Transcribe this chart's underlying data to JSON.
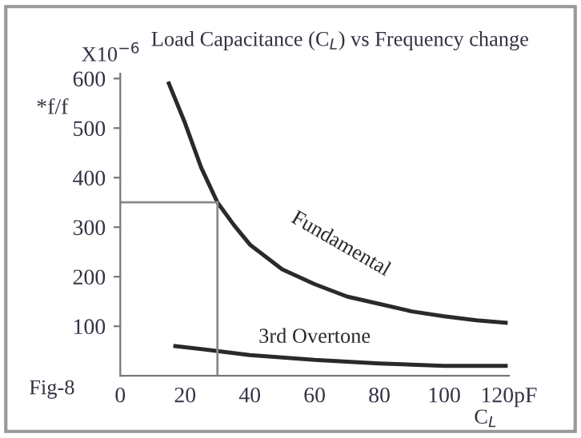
{
  "chart_data": {
    "type": "line",
    "title": "Load Capacitance (C$_{L}$) vs Frequency change",
    "xlabel": "C$_{L}$",
    "ylabel": "*f/f",
    "xlim": [
      0,
      120
    ],
    "xticks": [
      0,
      20,
      40,
      60,
      80,
      100,
      {
        "value": 120,
        "label": "120pF"
      }
    ],
    "ylim": [
      0,
      610
    ],
    "yticks": [
      100,
      200,
      300,
      400,
      500,
      600
    ],
    "series": [
      {
        "name": "Fundamental",
        "color": "#2a2a2a",
        "x": [
          15,
          20,
          25,
          30,
          35,
          40,
          50,
          60,
          70,
          80,
          90,
          100,
          110,
          119
        ],
        "values": [
          590,
          510,
          420,
          350,
          305,
          265,
          215,
          185,
          160,
          145,
          130,
          120,
          112,
          107
        ]
      },
      {
        "name": "3rd Overtone",
        "color": "#2a2a2a",
        "x": [
          17,
          30,
          40,
          60,
          80,
          100,
          119
        ],
        "values": [
          60,
          50,
          42,
          32,
          25,
          20,
          20
        ]
      }
    ],
    "ref_lines": [
      {
        "axis": "x",
        "value": 30,
        "color": "#8a8a8a"
      },
      {
        "axis": "y",
        "value": 350,
        "color": "#8a8a8a"
      }
    ],
    "annotations": [
      "X10$^{−6}$",
      "Fig-8"
    ],
    "grid": false,
    "legend": false,
    "marker": "none",
    "line_style": "solid"
  }
}
